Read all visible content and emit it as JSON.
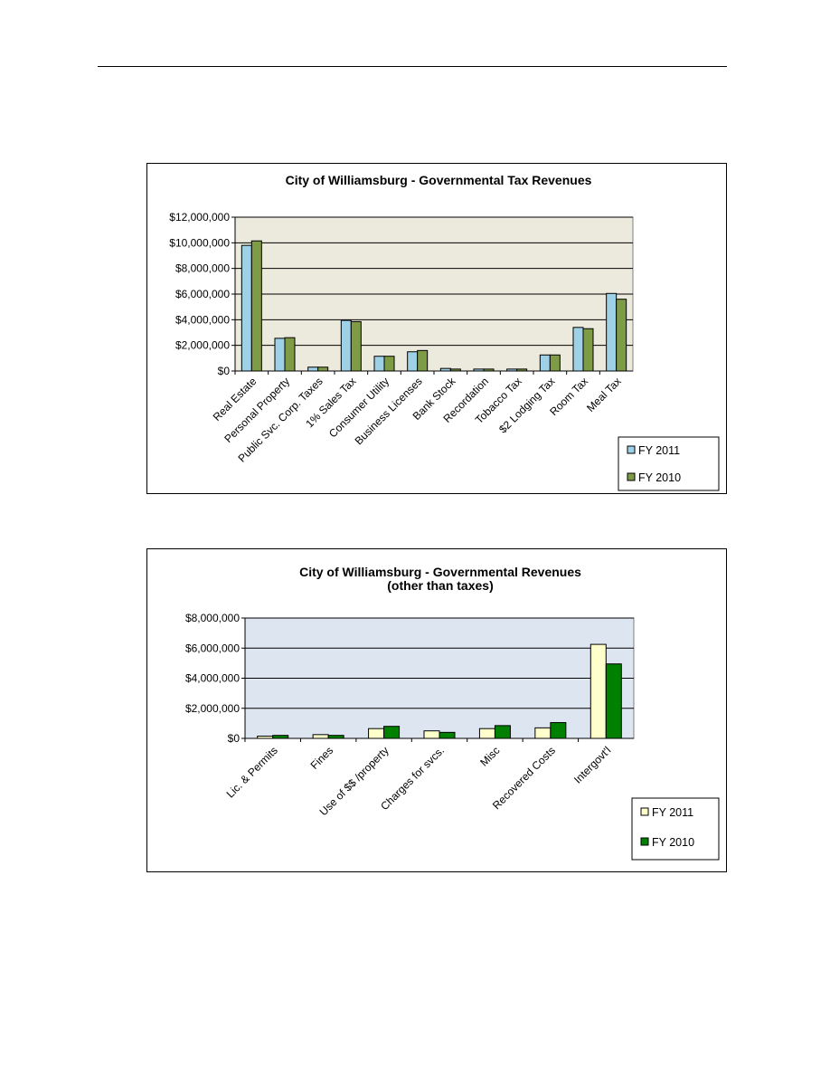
{
  "chart_data": [
    {
      "type": "bar",
      "title": "City of Williamsburg - Governmental Tax Revenues",
      "subtitle": "",
      "xlabel": "",
      "ylabel": "",
      "ylim": [
        0,
        12000000
      ],
      "yticks": [
        "$0",
        "$2,000,000",
        "$4,000,000",
        "$6,000,000",
        "$8,000,000",
        "$10,000,000",
        "$12,000,000"
      ],
      "grid": true,
      "legend_position": "bottom-right",
      "plot_background": "#ECE9DD",
      "categories": [
        "Real Estate",
        "Personal Property",
        "Public Svc. Corp. Taxes",
        "1% Sales Tax",
        "Consumer Utility",
        "Business Licenses",
        "Bank Stock",
        "Recordation",
        "Tobacco Tax",
        "$2 Lodging Tax",
        "Room Tax",
        "Meal Tax"
      ],
      "series": [
        {
          "name": "FY 2011",
          "color": "#9ED0E6",
          "values": [
            9800000,
            2550000,
            300000,
            3950000,
            1150000,
            1500000,
            200000,
            150000,
            150000,
            1250000,
            3400000,
            6050000
          ]
        },
        {
          "name": "FY 2010",
          "color": "#7E9B45",
          "values": [
            10150000,
            2600000,
            300000,
            3850000,
            1150000,
            1600000,
            150000,
            150000,
            150000,
            1250000,
            3300000,
            5600000
          ]
        }
      ]
    },
    {
      "type": "bar",
      "title": "City of Williamsburg - Governmental Revenues",
      "subtitle": "(other than taxes)",
      "xlabel": "",
      "ylabel": "",
      "ylim": [
        0,
        8000000
      ],
      "yticks": [
        "$0",
        "$2,000,000",
        "$4,000,000",
        "$6,000,000",
        "$8,000,000"
      ],
      "grid": true,
      "legend_position": "bottom-right",
      "plot_background": "#DDE5F1",
      "categories": [
        "Lic. & Permits",
        "Fines",
        "Use of $$ /property",
        "Charges for svcs.",
        "Misc",
        "Recovered Costs",
        "Intergovt'l"
      ],
      "series": [
        {
          "name": "FY 2011",
          "color": "#FFFFCC",
          "values": [
            150000,
            250000,
            650000,
            500000,
            650000,
            700000,
            6250000
          ]
        },
        {
          "name": "FY 2010",
          "color": "#008000",
          "values": [
            200000,
            200000,
            800000,
            400000,
            850000,
            1050000,
            4950000
          ]
        }
      ]
    }
  ]
}
